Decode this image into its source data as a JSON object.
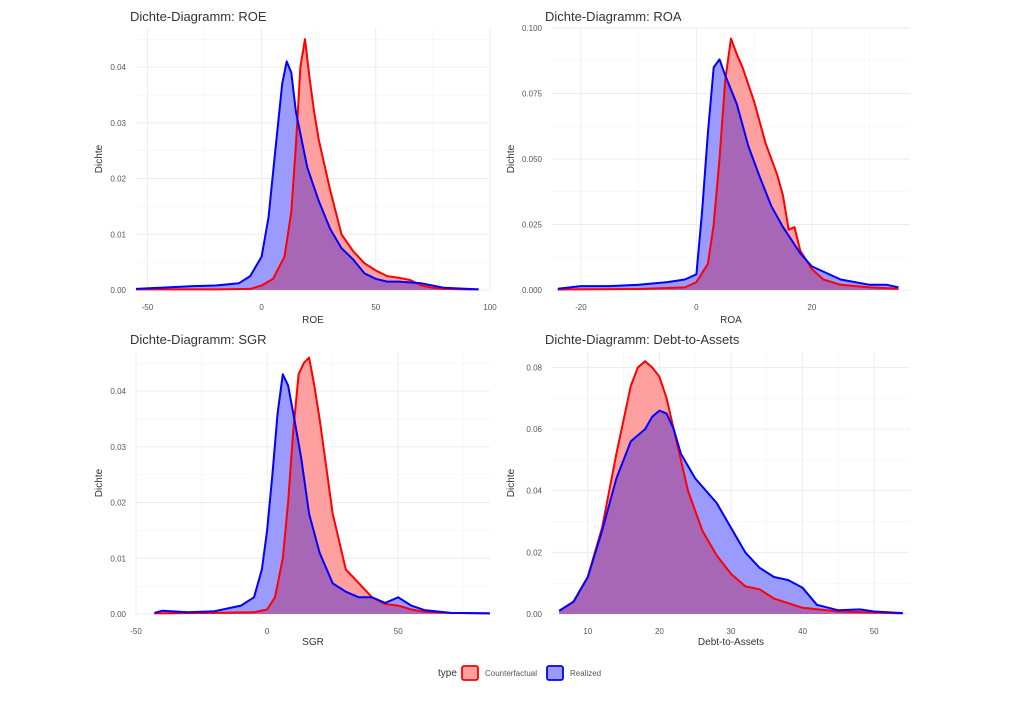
{
  "colors": {
    "counterfactual_fill": "#fe9fa0",
    "counterfactual_line": "#ff0000",
    "realized_fill": "#9b9bfe",
    "realized_line": "#0000ff",
    "overlap_fill": "#a867b6",
    "grid": "#ebebeb"
  },
  "legend": {
    "title": "type",
    "items": [
      "Counterfactual",
      "Realized"
    ]
  },
  "chart_data": [
    {
      "type": "area",
      "title": "Dichte-Diagramm: ROE",
      "xlabel": "ROE",
      "ylabel": "Dichte",
      "xlim": [
        -55,
        100
      ],
      "ylim": [
        0,
        0.047
      ],
      "xticks": [
        -50,
        0,
        50,
        100
      ],
      "xtick_labels": [
        "-50",
        "0",
        "50",
        "100"
      ],
      "yticks": [
        0,
        0.01,
        0.02,
        0.03,
        0.04
      ],
      "ytick_labels": [
        "0.00",
        "0.01",
        "0.02",
        "0.03",
        "0.04"
      ],
      "grid": true,
      "series": [
        {
          "name": "Counterfactual",
          "x": [
            -55,
            -20,
            -5,
            0,
            5,
            10,
            13,
            15,
            17,
            19,
            21,
            23,
            25,
            30,
            35,
            40,
            45,
            50,
            55,
            60,
            65,
            70,
            75,
            80,
            90,
            95
          ],
          "y": [
            0.0001,
            0.0001,
            0.0002,
            0.0008,
            0.002,
            0.006,
            0.014,
            0.026,
            0.04,
            0.045,
            0.038,
            0.032,
            0.027,
            0.018,
            0.01,
            0.007,
            0.0048,
            0.0035,
            0.0025,
            0.0022,
            0.0018,
            0.0008,
            0.0004,
            0.0002,
            0.0001,
            0.0001
          ]
        },
        {
          "name": "Realized",
          "x": [
            -55,
            -40,
            -30,
            -20,
            -10,
            -5,
            0,
            3,
            6,
            9,
            11,
            13,
            15,
            18,
            20,
            25,
            30,
            35,
            40,
            45,
            50,
            55,
            60,
            70,
            80,
            95
          ],
          "y": [
            0.0002,
            0.0005,
            0.0007,
            0.0008,
            0.0012,
            0.0025,
            0.006,
            0.013,
            0.025,
            0.037,
            0.041,
            0.039,
            0.032,
            0.026,
            0.022,
            0.016,
            0.011,
            0.0075,
            0.0055,
            0.003,
            0.002,
            0.0015,
            0.0015,
            0.0012,
            0.0004,
            0.0001
          ]
        }
      ]
    },
    {
      "type": "area",
      "title": "Dichte-Diagramm: ROA",
      "xlabel": "ROA",
      "ylabel": "Dichte",
      "xlim": [
        -25,
        37
      ],
      "ylim": [
        0,
        0.1
      ],
      "xticks": [
        -20,
        0,
        20
      ],
      "xtick_labels": [
        "-20",
        "0",
        "20"
      ],
      "yticks": [
        0,
        0.025,
        0.05,
        0.075,
        0.1
      ],
      "ytick_labels": [
        "0.000",
        "0.025",
        "0.050",
        "0.075",
        "0.100"
      ],
      "grid": true,
      "series": [
        {
          "name": "Counterfactual",
          "x": [
            -24,
            -10,
            -2,
            0,
            2,
            3,
            4,
            5,
            6,
            7,
            8,
            10,
            12,
            14,
            15,
            16,
            17,
            18,
            20,
            22,
            25,
            30,
            35
          ],
          "y": [
            0.0002,
            0.0004,
            0.001,
            0.003,
            0.01,
            0.025,
            0.05,
            0.08,
            0.096,
            0.09,
            0.085,
            0.072,
            0.056,
            0.044,
            0.036,
            0.023,
            0.024,
            0.015,
            0.008,
            0.004,
            0.002,
            0.001,
            0.0005
          ]
        },
        {
          "name": "Realized",
          "x": [
            -24,
            -20,
            -15,
            -10,
            -5,
            -2,
            0,
            1,
            2,
            3,
            4,
            5,
            7,
            9,
            11,
            13,
            15,
            18,
            20,
            25,
            30,
            33,
            35
          ],
          "y": [
            0.0005,
            0.0015,
            0.0015,
            0.002,
            0.003,
            0.004,
            0.006,
            0.03,
            0.06,
            0.085,
            0.088,
            0.082,
            0.071,
            0.055,
            0.043,
            0.032,
            0.024,
            0.014,
            0.009,
            0.004,
            0.002,
            0.002,
            0.001
          ]
        }
      ]
    },
    {
      "type": "area",
      "title": "Dichte-Diagramm: SGR",
      "xlabel": "SGR",
      "ylabel": "Dichte",
      "xlim": [
        -50,
        85
      ],
      "ylim": [
        0,
        0.047
      ],
      "xticks": [
        -50,
        0,
        50
      ],
      "xtick_labels": [
        "-50",
        "0",
        "50"
      ],
      "yticks": [
        0,
        0.01,
        0.02,
        0.03,
        0.04
      ],
      "ytick_labels": [
        "0.00",
        "0.01",
        "0.02",
        "0.03",
        "0.04"
      ],
      "grid": true,
      "series": [
        {
          "name": "Counterfactual",
          "x": [
            -43,
            -20,
            -5,
            0,
            3,
            6,
            8,
            10,
            12,
            14,
            16,
            18,
            20,
            25,
            30,
            35,
            40,
            45,
            50,
            55,
            60,
            70,
            85
          ],
          "y": [
            0.0001,
            0.0002,
            0.0003,
            0.0008,
            0.003,
            0.01,
            0.02,
            0.033,
            0.043,
            0.045,
            0.046,
            0.041,
            0.035,
            0.018,
            0.008,
            0.0055,
            0.003,
            0.0018,
            0.0015,
            0.0008,
            0.0004,
            0.0002,
            0.0001
          ]
        },
        {
          "name": "Realized",
          "x": [
            -43,
            -40,
            -30,
            -20,
            -10,
            -5,
            -2,
            0,
            2,
            4,
            6,
            8,
            10,
            13,
            16,
            20,
            25,
            30,
            35,
            40,
            45,
            50,
            55,
            60,
            70,
            85
          ],
          "y": [
            0.0002,
            0.0006,
            0.0003,
            0.0005,
            0.0015,
            0.003,
            0.008,
            0.015,
            0.025,
            0.036,
            0.043,
            0.041,
            0.036,
            0.028,
            0.018,
            0.011,
            0.0055,
            0.004,
            0.003,
            0.003,
            0.002,
            0.003,
            0.0015,
            0.0007,
            0.0002,
            0.0001
          ]
        }
      ]
    },
    {
      "type": "area",
      "title": "Dichte-Diagramm: Debt-to-Assets",
      "xlabel": "Debt-to-Assets",
      "ylabel": "Dichte",
      "xlim": [
        5,
        55
      ],
      "ylim": [
        0,
        0.085
      ],
      "xticks": [
        10,
        20,
        30,
        40,
        50
      ],
      "xtick_labels": [
        "10",
        "20",
        "30",
        "40",
        "50"
      ],
      "yticks": [
        0,
        0.02,
        0.04,
        0.06,
        0.08
      ],
      "ytick_labels": [
        "0.00",
        "0.02",
        "0.04",
        "0.06",
        "0.08"
      ],
      "grid": true,
      "series": [
        {
          "name": "Counterfactual",
          "x": [
            6,
            8,
            10,
            12,
            14,
            16,
            17,
            18,
            19,
            20,
            21,
            22,
            24,
            26,
            28,
            30,
            32,
            34,
            36,
            40,
            45,
            50,
            54
          ],
          "y": [
            0.001,
            0.004,
            0.012,
            0.028,
            0.052,
            0.074,
            0.08,
            0.082,
            0.08,
            0.077,
            0.07,
            0.06,
            0.04,
            0.027,
            0.019,
            0.013,
            0.009,
            0.008,
            0.005,
            0.002,
            0.0008,
            0.0005,
            0.0002
          ]
        },
        {
          "name": "Realized",
          "x": [
            6,
            8,
            10,
            12,
            14,
            16,
            17,
            18,
            19,
            20,
            21,
            22,
            23,
            25,
            28,
            30,
            32,
            34,
            36,
            38,
            40,
            42,
            45,
            48,
            50,
            54
          ],
          "y": [
            0.001,
            0.004,
            0.012,
            0.027,
            0.044,
            0.056,
            0.058,
            0.06,
            0.064,
            0.066,
            0.065,
            0.06,
            0.052,
            0.044,
            0.036,
            0.028,
            0.02,
            0.015,
            0.012,
            0.011,
            0.0085,
            0.003,
            0.0012,
            0.0015,
            0.0008,
            0.0003
          ]
        }
      ]
    }
  ]
}
